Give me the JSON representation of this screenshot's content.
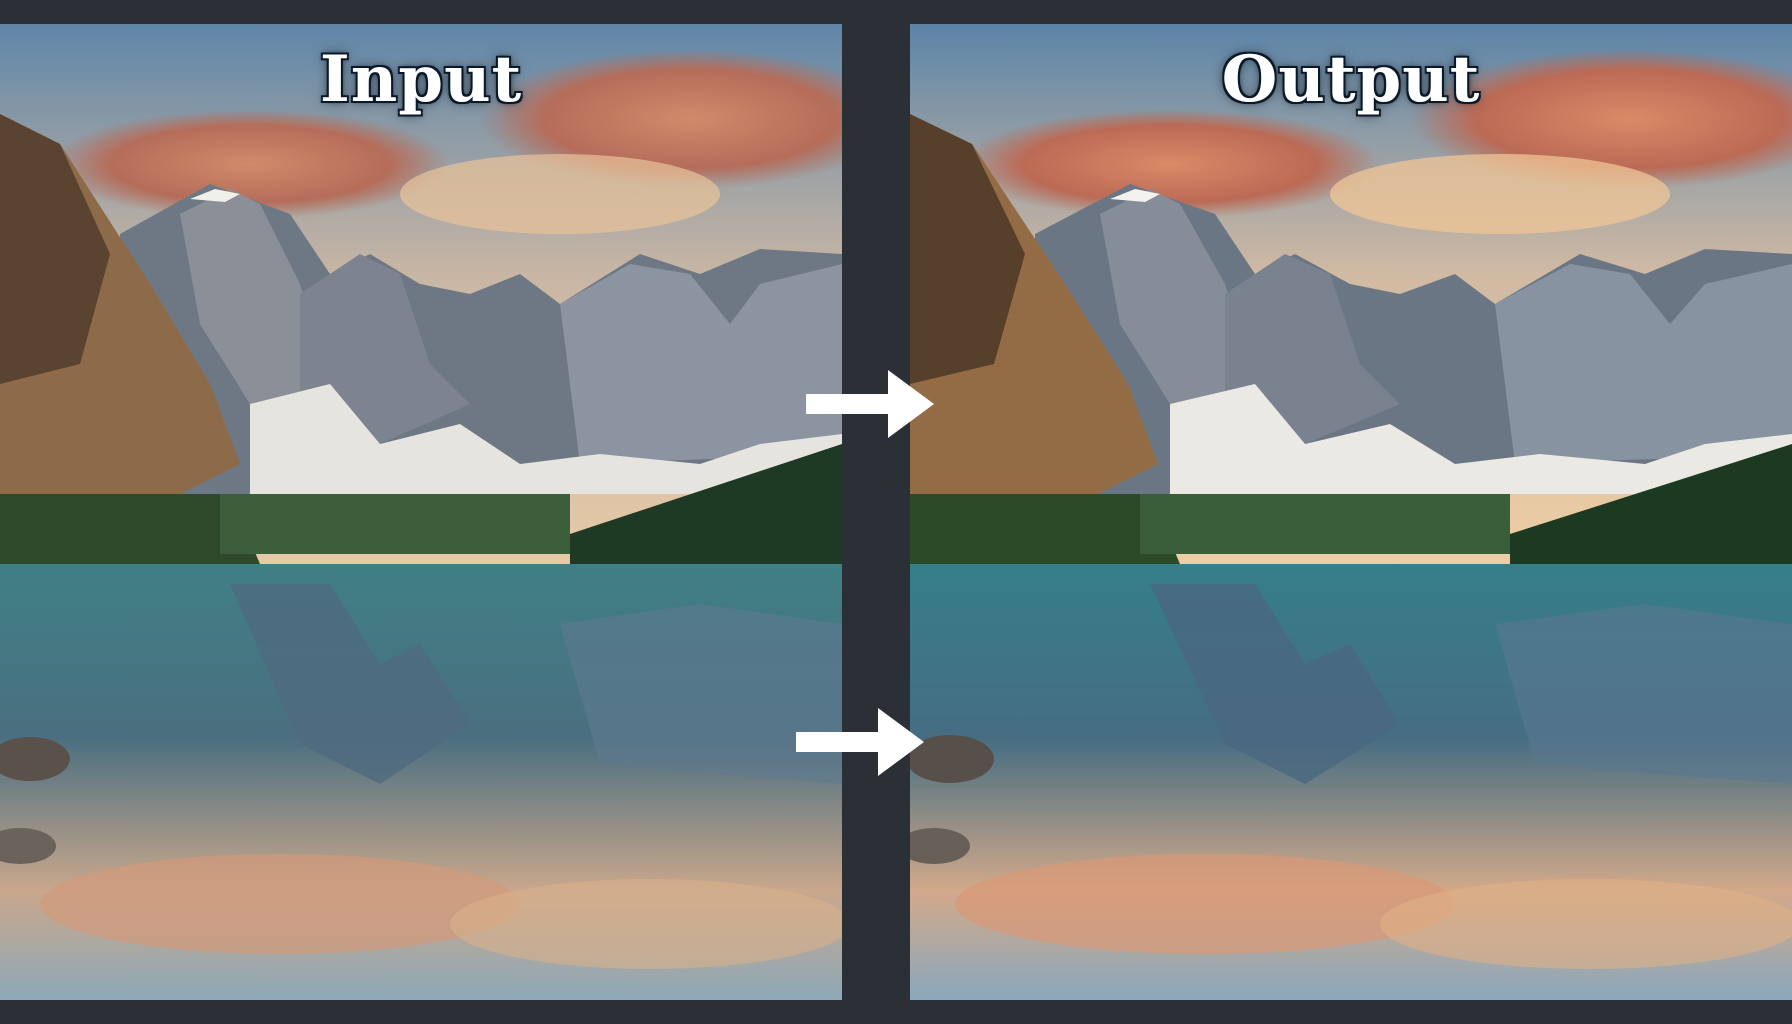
{
  "panels": {
    "input": {
      "title": "Input"
    },
    "output": {
      "title": "Output"
    }
  },
  "icons": {
    "upper_arrow": "right-arrow-icon",
    "lower_arrow": "right-arrow-icon"
  },
  "colors": {
    "background": "#2b2f36",
    "arrow": "#ffffff",
    "title_text": "#ffffff"
  }
}
